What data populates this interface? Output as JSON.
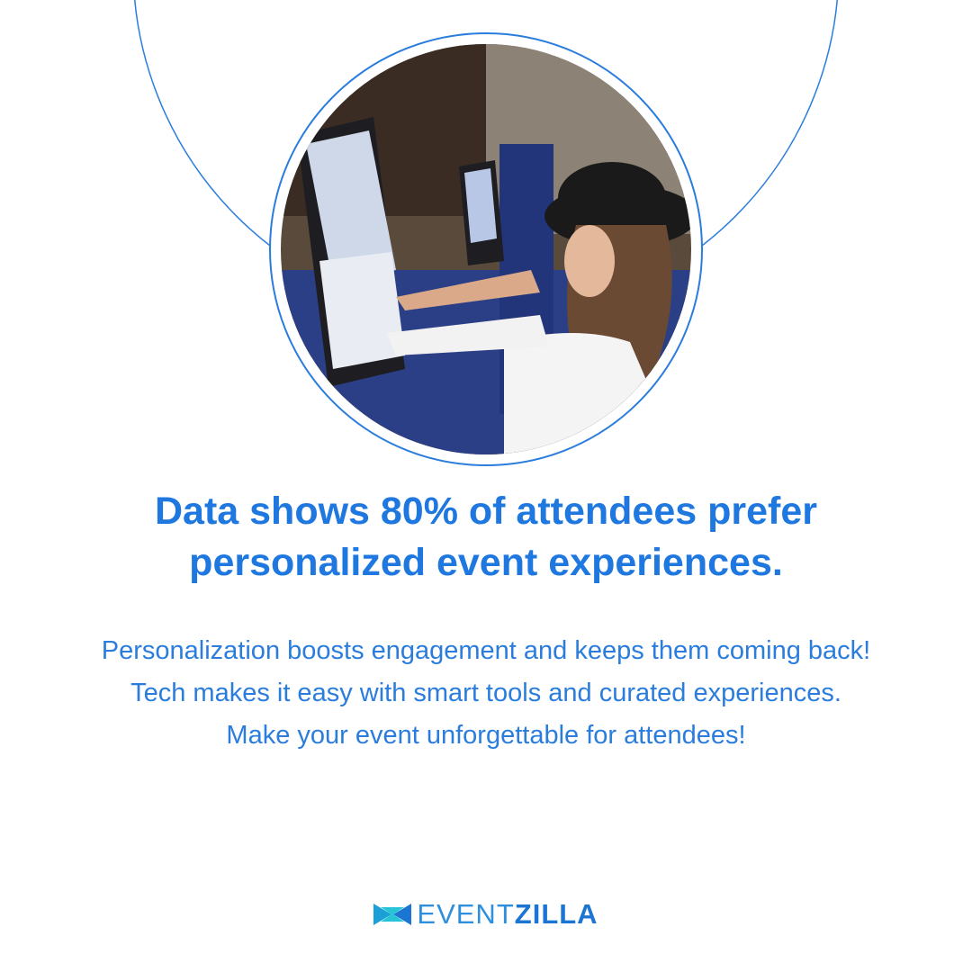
{
  "heading": {
    "lines": [
      "Data shows 80% of attendees prefer",
      "personalized event experiences."
    ]
  },
  "body": {
    "paragraphs": [
      "Personalization boosts engagement and keeps them coming back!",
      "Tech makes it easy with smart tools and curated experiences.",
      "Make your event unforgettable for attendees!"
    ]
  },
  "logo": {
    "part1": "EVENT",
    "part2": "ZILLA"
  }
}
